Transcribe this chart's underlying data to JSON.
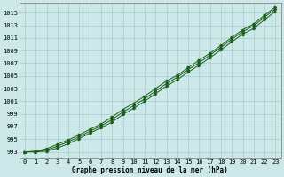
{
  "xlabel": "Graphe pression niveau de la mer (hPa)",
  "ylim": [
    992,
    1016.5
  ],
  "xlim": [
    -0.5,
    23.5
  ],
  "yticks": [
    993,
    995,
    997,
    999,
    1001,
    1003,
    1005,
    1007,
    1009,
    1011,
    1013,
    1015
  ],
  "xticks": [
    0,
    1,
    2,
    3,
    4,
    5,
    6,
    7,
    8,
    9,
    10,
    11,
    12,
    13,
    14,
    15,
    16,
    17,
    18,
    19,
    20,
    21,
    22,
    23
  ],
  "background_color": "#cce8e8",
  "grid_color": "#aacccc",
  "line_color": "#1a5c1a",
  "line1": [
    993.0,
    993.1,
    993.5,
    994.2,
    994.9,
    995.7,
    996.6,
    997.4,
    998.5,
    999.7,
    1000.7,
    1001.8,
    1003.0,
    1004.2,
    1005.1,
    1006.3,
    1007.5,
    1008.6,
    1009.8,
    1011.1,
    1012.3,
    1013.2,
    1014.6,
    1015.9
  ],
  "line2": [
    993.0,
    993.0,
    993.3,
    993.9,
    994.6,
    995.4,
    996.3,
    997.1,
    998.1,
    999.3,
    1000.3,
    1001.4,
    1002.6,
    1003.8,
    1004.8,
    1006.0,
    1007.1,
    1008.3,
    1009.5,
    1010.8,
    1012.0,
    1012.9,
    1014.3,
    1015.6
  ],
  "line3": [
    993.0,
    993.0,
    993.1,
    993.6,
    994.3,
    995.1,
    996.0,
    996.8,
    997.7,
    998.9,
    999.9,
    1001.0,
    1002.2,
    1003.4,
    1004.4,
    1005.6,
    1006.7,
    1007.9,
    1009.1,
    1010.4,
    1011.6,
    1012.5,
    1013.9,
    1015.2
  ],
  "ylabel_fontsize": 5.5,
  "xlabel_fontsize": 5.5,
  "tick_fontsize": 5.0
}
